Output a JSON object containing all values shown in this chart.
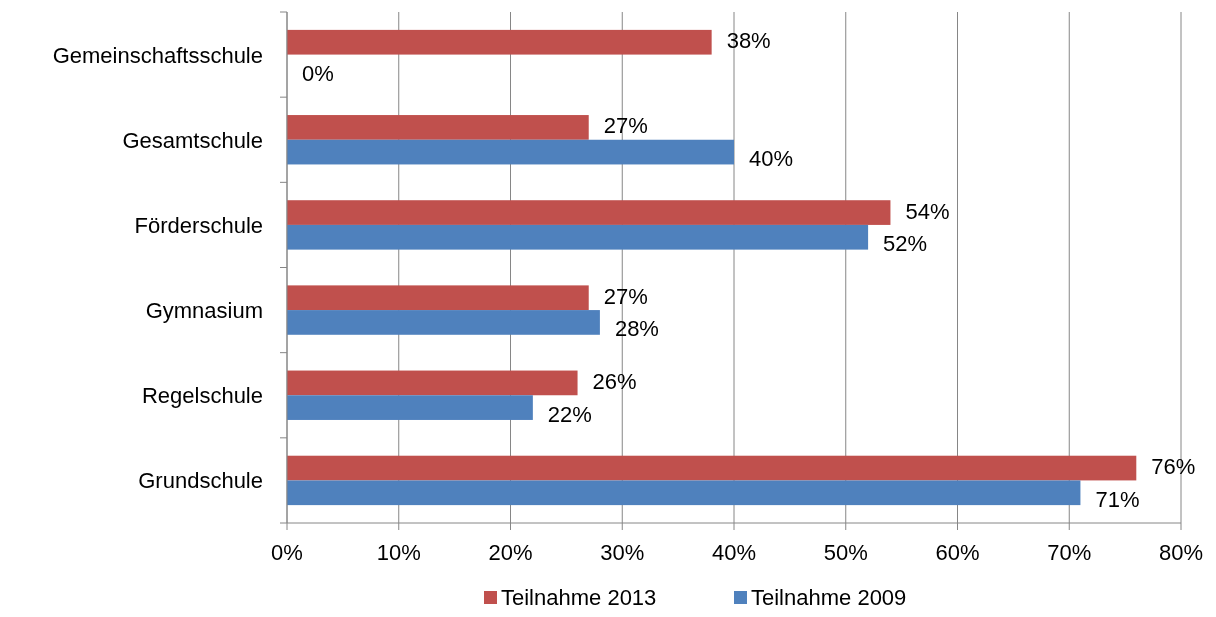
{
  "chart_data": {
    "type": "bar",
    "orientation": "horizontal",
    "categories": [
      "Gemeinschaftsschule",
      "Gesamtschule",
      "Förderschule",
      "Gymnasium",
      "Regelschule",
      "Grundschule"
    ],
    "series": [
      {
        "name": "Teilnahme 2013",
        "color": "#c0504d",
        "values": [
          38,
          27,
          54,
          27,
          26,
          76
        ],
        "value_labels": [
          "38%",
          "27%",
          "54%",
          "27%",
          "26%",
          "76%"
        ]
      },
      {
        "name": "Teilnahme 2009",
        "color": "#4f81bd",
        "values": [
          0,
          40,
          52,
          28,
          22,
          71
        ],
        "value_labels": [
          "0%",
          "40%",
          "52%",
          "28%",
          "22%",
          "71%"
        ]
      }
    ],
    "xlim": [
      0,
      80
    ],
    "xticks": [
      {
        "value": 0,
        "label": "0%"
      },
      {
        "value": 10,
        "label": "10%"
      },
      {
        "value": 20,
        "label": "20%"
      },
      {
        "value": 30,
        "label": "30%"
      },
      {
        "value": 40,
        "label": "40%"
      },
      {
        "value": 50,
        "label": "50%"
      },
      {
        "value": 60,
        "label": "60%"
      },
      {
        "value": 70,
        "label": "70%"
      },
      {
        "value": 80,
        "label": "80%"
      }
    ],
    "grid": "x",
    "legend": "bottom"
  }
}
